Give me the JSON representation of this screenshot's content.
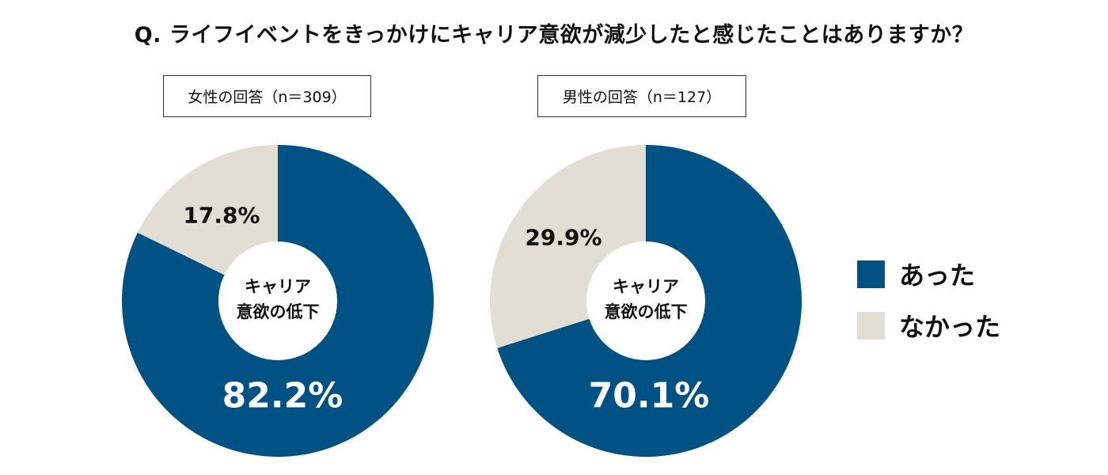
{
  "chart_data": [
    {
      "type": "pie",
      "donut": true,
      "header": "女性の回答（n＝309）",
      "center_label": [
        "キャリア",
        "意欲の低下"
      ],
      "categories": [
        "あった",
        "なかった"
      ],
      "values": [
        82.2,
        17.8
      ],
      "labels": [
        "82.2%",
        "17.8%"
      ]
    },
    {
      "type": "pie",
      "donut": true,
      "header": "男性の回答（n＝127）",
      "center_label": [
        "キャリア",
        "意欲の低下"
      ],
      "categories": [
        "あった",
        "なかった"
      ],
      "values": [
        70.1,
        29.9
      ],
      "labels": [
        "70.1%",
        "29.9%"
      ]
    }
  ],
  "title": "Q. ライフイベントをきっかけにキャリア意欲が減少したと感じたことはありますか？",
  "legend": [
    {
      "label": "あった",
      "color": "#005284"
    },
    {
      "label": "なかった",
      "color": "#e2ded3"
    }
  ],
  "legend_placement": "right"
}
